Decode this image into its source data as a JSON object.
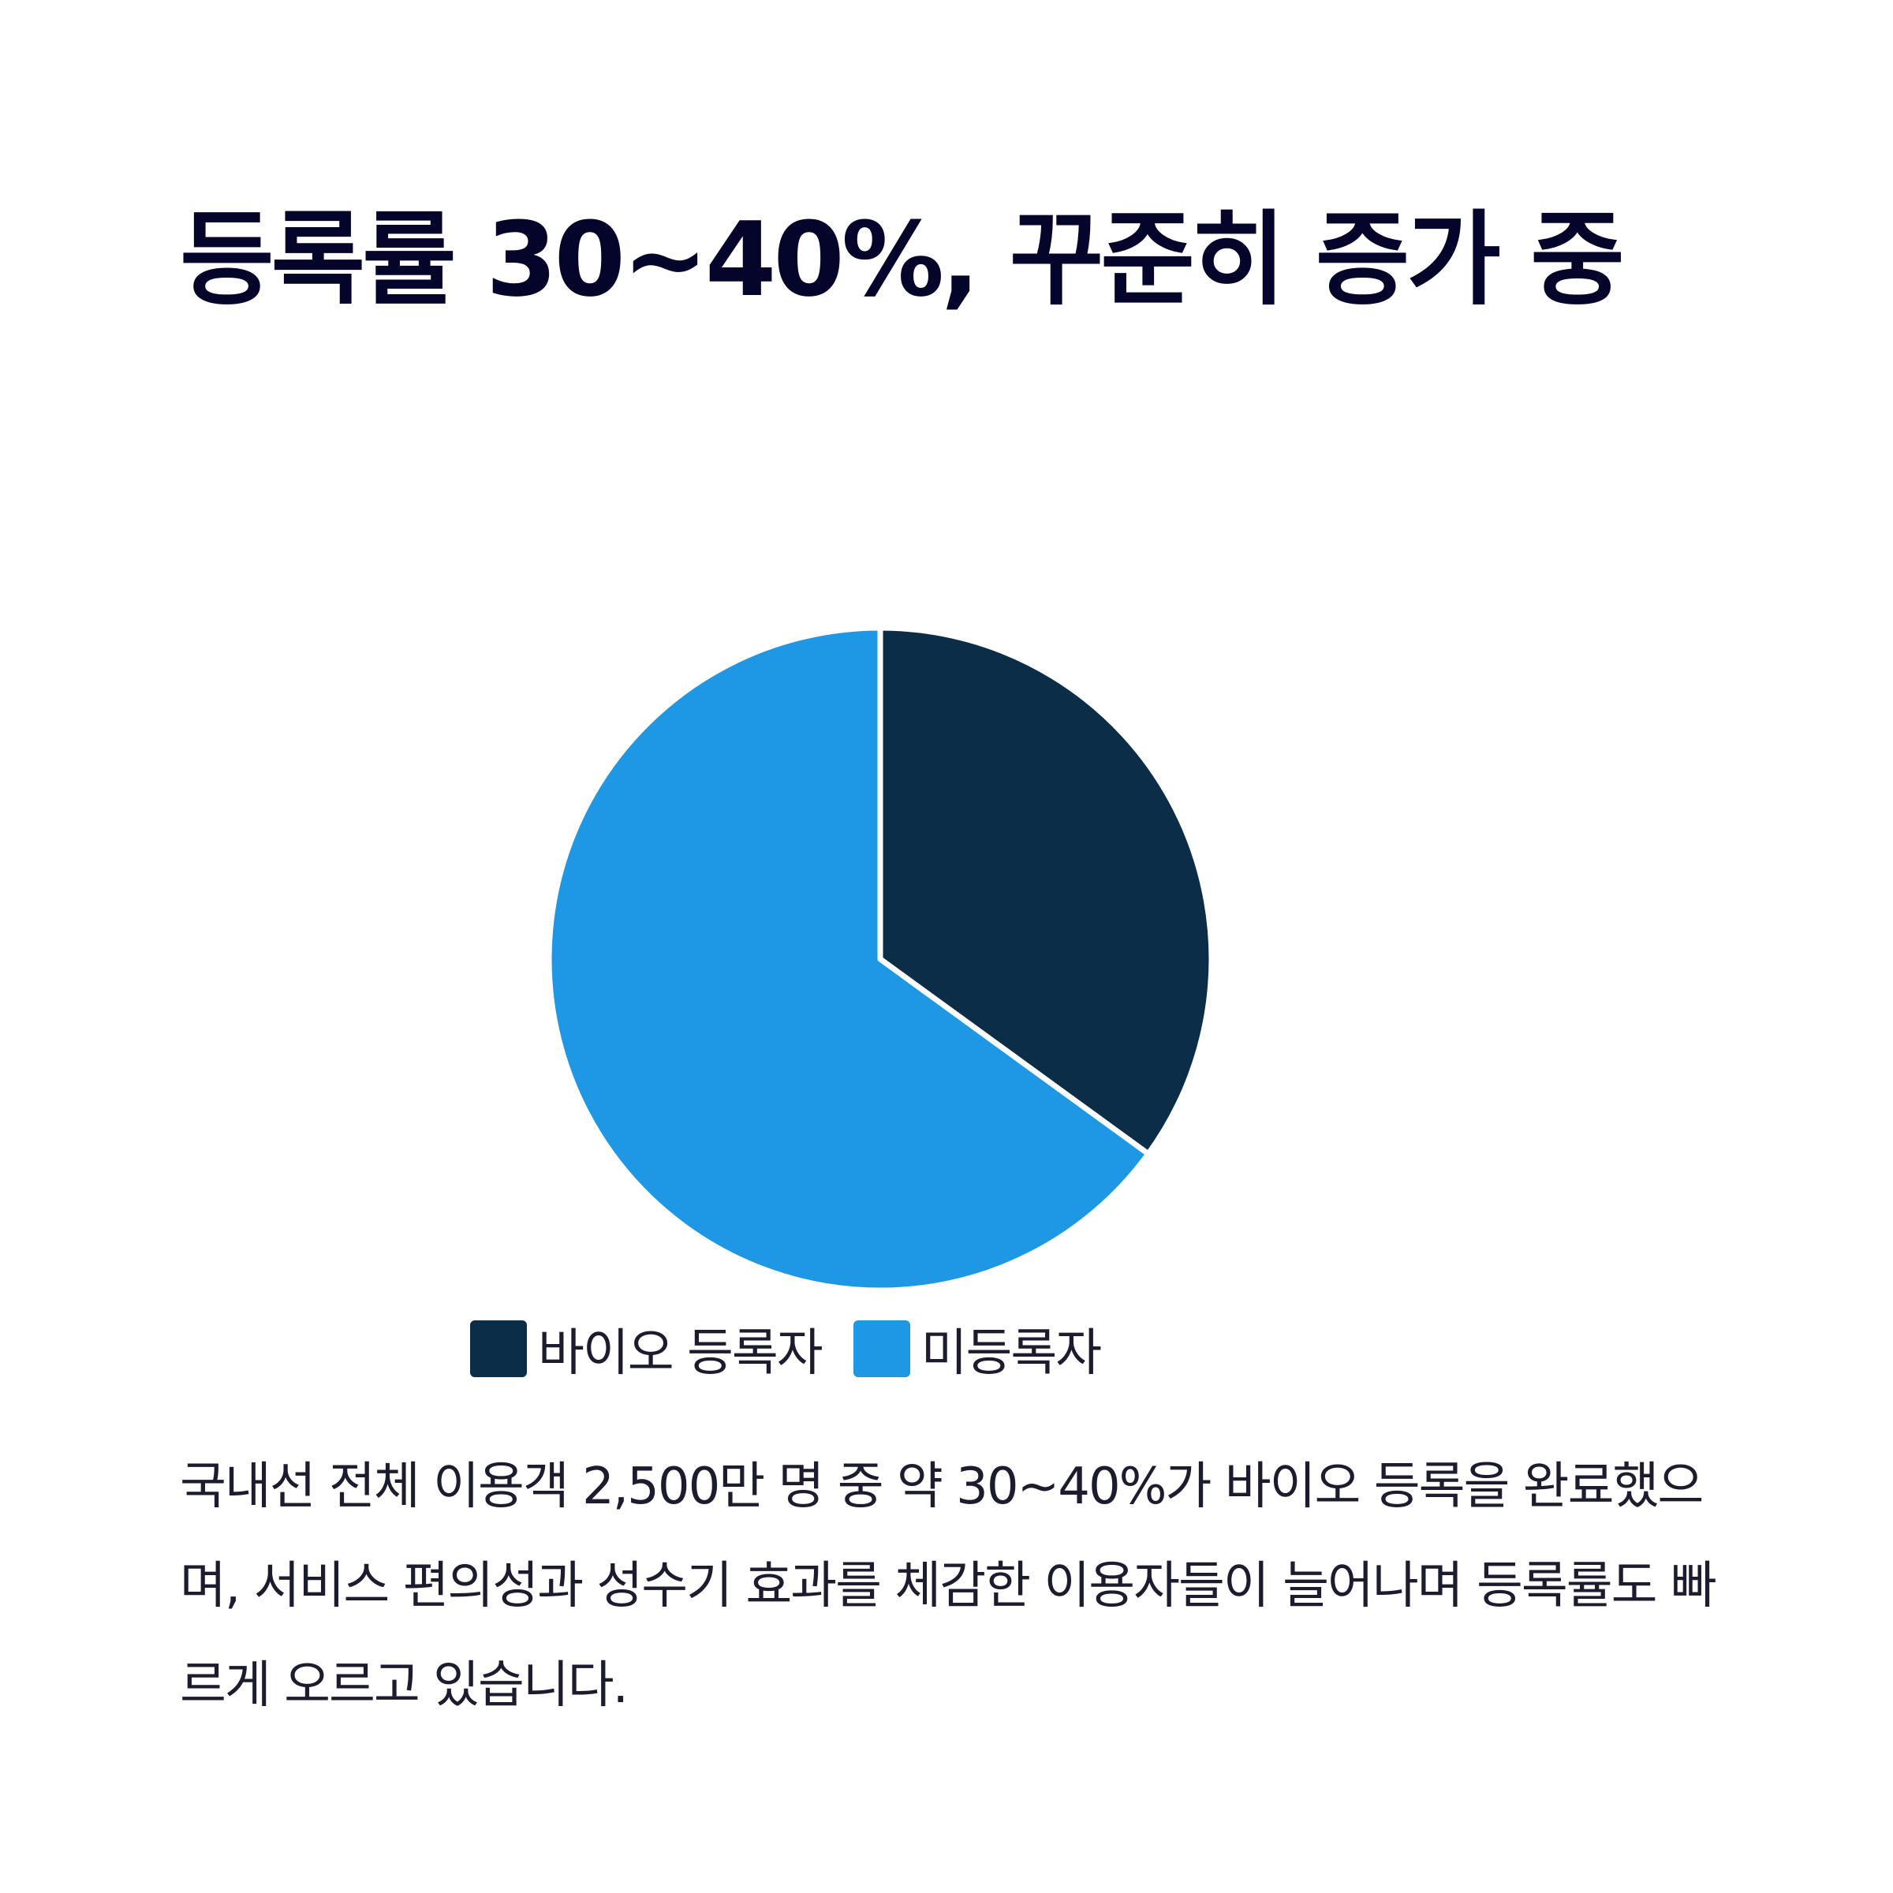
{
  "title": "등록률 30~40%, 꾸준히 증가 중",
  "body": "국내선 전체 이용객 2,500만 명 중 약 30~40%가 바이오 등록을 완료했으며, 서비스 편의성과 성수기 효과를 체감한 이용자들이 늘어나며 등록률도 빠르게 오르고 있습니다.",
  "colors": {
    "background": "#ffffff",
    "title": "#05052b",
    "registered": "#0c2d48",
    "unregistered": "#1e97e4",
    "separator": "#ffffff"
  },
  "chart_data": {
    "type": "pie",
    "title": "",
    "slices": [
      {
        "label": "바이오 등록자",
        "value": 35,
        "color": "#0c2d48"
      },
      {
        "label": "미등록자",
        "value": 65,
        "color": "#1e97e4"
      }
    ],
    "start_angle": "12 o'clock",
    "direction": "clockwise",
    "legend": {
      "placement": "bottom"
    }
  }
}
